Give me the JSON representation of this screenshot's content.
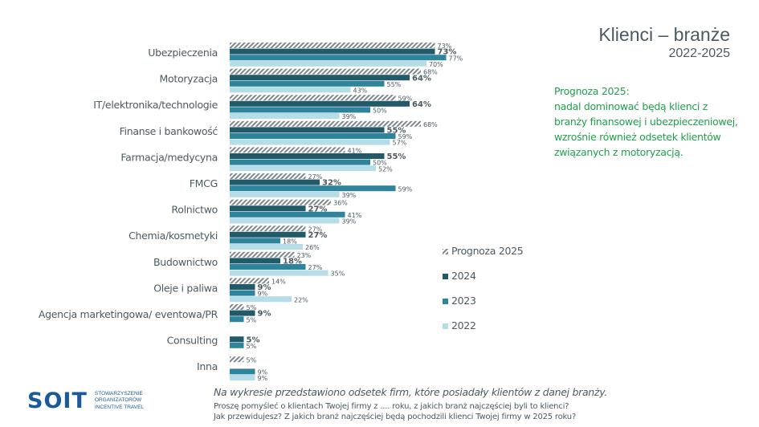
{
  "header": {
    "title": "Klienci – branże",
    "subtitle": "2022-2025"
  },
  "note": {
    "lines": [
      "Prognoza 2025:",
      "nadal dominować będą klienci z",
      "branży finansowej i ubezpieczeniowej,",
      "wzrośnie również odsetek klientów",
      "związanych z motoryzacją."
    ],
    "color": "#1fa04a"
  },
  "footer": {
    "main": "Na wykresie przedstawiono odsetek firm, które posiadały klientów z danej branży.",
    "q1": "Proszę pomyśleć o klientach Twojej firmy z .... roku, z jakich branż najczęściej byli to klienci?",
    "q2": "Jak przewidujesz? Z jakich branż najczęściej będą pochodzili klienci Twojej firmy w 2025 roku?"
  },
  "logo": {
    "mark": "SOIT",
    "lines": [
      "STOWARZYSZENIE",
      "ORGANIZATORÓW",
      "INCENTIVE TRAVEL"
    ]
  },
  "chart_data": {
    "type": "bar",
    "orientation": "horizontal",
    "title": "Klienci – branże",
    "subtitle": "2022-2025",
    "xlabel": "",
    "ylabel": "",
    "unit": "%",
    "xlim": [
      0,
      100
    ],
    "grid": false,
    "legend_position": "right",
    "categories": [
      "Ubezpieczenia",
      "Motoryzacja",
      "IT/elektronika/technologie",
      "Finanse i bankowość",
      "Farmacja/medycyna",
      "FMCG",
      "Rolnictwo",
      "Chemia/kosmetyki",
      "Budownictwo",
      "Oleje i paliwa",
      "Agencja marketingowa/ eventowa/PR",
      "Consulting",
      "Inna"
    ],
    "series": [
      {
        "name": "Prognoza 2025",
        "color": "#8a9499",
        "pattern": "hatched",
        "values": [
          73,
          68,
          59,
          68,
          41,
          27,
          36,
          27,
          23,
          14,
          5,
          null,
          5
        ]
      },
      {
        "name": "2024",
        "color": "#235a6a",
        "values": [
          73,
          64,
          64,
          55,
          55,
          32,
          27,
          27,
          18,
          9,
          9,
          5,
          null
        ]
      },
      {
        "name": "2023",
        "color": "#2e849c",
        "values": [
          77,
          55,
          50,
          59,
          50,
          59,
          41,
          18,
          27,
          9,
          5,
          5,
          9
        ]
      },
      {
        "name": "2022",
        "color": "#b5dde8",
        "values": [
          70,
          43,
          39,
          57,
          52,
          39,
          39,
          26,
          35,
          22,
          null,
          null,
          9
        ]
      }
    ]
  }
}
